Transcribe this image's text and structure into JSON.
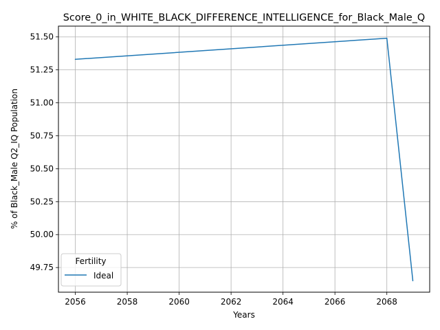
{
  "chart_data": {
    "type": "line",
    "title": "Score_0_in_WHITE_BLACK_DIFFERENCE_INTELLIGENCE_for_Black_Male_Q",
    "xlabel": "Years",
    "ylabel": "% of Black_Male Q2_IQ Population",
    "xlim": [
      2055.35,
      2069.65
    ],
    "ylim": [
      49.563,
      51.582
    ],
    "xticks": [
      2056,
      2058,
      2060,
      2062,
      2064,
      2066,
      2068
    ],
    "xtick_labels": [
      "2056",
      "2058",
      "2060",
      "2062",
      "2064",
      "2066",
      "2068"
    ],
    "yticks": [
      49.75,
      50.0,
      50.25,
      50.5,
      50.75,
      51.0,
      51.25,
      51.5
    ],
    "ytick_labels": [
      "49.75",
      "50.00",
      "50.25",
      "50.50",
      "50.75",
      "51.00",
      "51.25",
      "51.50"
    ],
    "grid": true,
    "legend": {
      "title": "Fertility",
      "placement": "lower-left"
    },
    "series": [
      {
        "name": "Ideal",
        "color": "#1f77b4",
        "x": [
          2056,
          2068,
          2069
        ],
        "y": [
          51.33,
          51.49,
          49.65
        ]
      }
    ]
  }
}
